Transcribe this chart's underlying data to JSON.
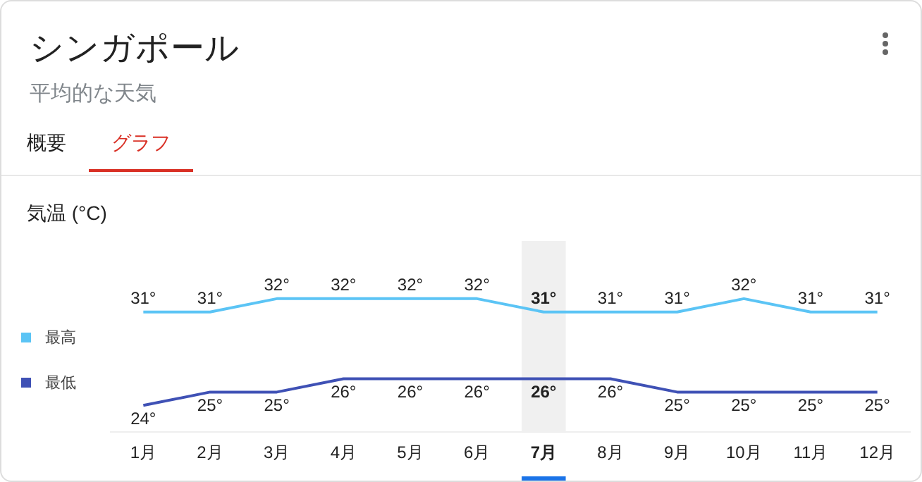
{
  "chart_data": {
    "type": "line",
    "title": "シンガポール",
    "subtitle": "平均的な天気",
    "ylabel": "気温 (°C)",
    "annotations": [
      "概要",
      "グラフ"
    ],
    "categories": [
      "1月",
      "2月",
      "3月",
      "4月",
      "5月",
      "6月",
      "7月",
      "8月",
      "9月",
      "10月",
      "11月",
      "12月"
    ],
    "series": [
      {
        "name": "最高",
        "color": "#5bc4f5",
        "values": [
          31,
          31,
          32,
          32,
          32,
          32,
          31,
          31,
          31,
          32,
          31,
          31
        ],
        "value_labels": [
          "31°",
          "31°",
          "32°",
          "32°",
          "32°",
          "32°",
          "31°",
          "31°",
          "31°",
          "32°",
          "31°",
          "31°"
        ]
      },
      {
        "name": "最低",
        "color": "#3f51b5",
        "values": [
          24,
          25,
          25,
          26,
          26,
          26,
          26,
          26,
          25,
          25,
          25,
          25
        ],
        "value_labels": [
          "24°",
          "25°",
          "25°",
          "26°",
          "26°",
          "26°",
          "26°",
          "26°",
          "25°",
          "25°",
          "25°",
          "25°"
        ]
      }
    ],
    "bands": [
      {
        "axis": "x",
        "from": "7月",
        "to": "7月",
        "color": "#f0f0f0"
      }
    ],
    "grid": false,
    "legend": "left",
    "marker": "none",
    "line_style": "solid"
  }
}
